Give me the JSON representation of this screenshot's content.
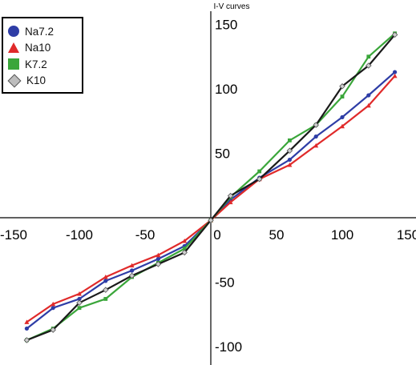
{
  "chart_data": {
    "type": "line",
    "title": "I-V curves",
    "xlabel": "",
    "ylabel": "",
    "xlim": [
      -155,
      155
    ],
    "ylim": [
      -105,
      155
    ],
    "x_ticks": [
      -150,
      -100,
      -50,
      0,
      50,
      100,
      150
    ],
    "y_ticks": [
      -100,
      -50,
      50,
      100,
      150
    ],
    "x_tick_labels": [
      "-150",
      "-100",
      "-50",
      "0",
      "50",
      "100",
      "150"
    ],
    "y_tick_labels": [
      "-100",
      "-50",
      "50",
      "100",
      "150"
    ],
    "grid": false,
    "legend_position": "top-left",
    "series": [
      {
        "name": "Na7.2",
        "color": "#2e3da6",
        "marker": "circle",
        "x": [
          -140,
          -120,
          -100,
          -80,
          -60,
          -40,
          -20,
          0,
          15,
          37,
          60,
          80,
          100,
          120,
          140
        ],
        "y": [
          -86,
          -70,
          -63,
          -49,
          -41,
          -32,
          -22,
          -2,
          14,
          31,
          45,
          63,
          78,
          95,
          113
        ]
      },
      {
        "name": "Na10",
        "color": "#e02a2a",
        "marker": "triangle",
        "x": [
          -140,
          -120,
          -100,
          -80,
          -60,
          -40,
          -20,
          0,
          15,
          37,
          60,
          80,
          100,
          120,
          140
        ],
        "y": [
          -81,
          -67,
          -59,
          -46,
          -37,
          -29,
          -18,
          -2,
          12,
          30,
          41,
          56,
          71,
          87,
          110
        ]
      },
      {
        "name": "K7.2",
        "color": "#3aa63a",
        "marker": "square",
        "x": [
          -140,
          -120,
          -100,
          -80,
          -60,
          -40,
          -20,
          0,
          15,
          37,
          60,
          80,
          100,
          120,
          140
        ],
        "y": [
          -95,
          -86,
          -70,
          -63,
          -46,
          -35,
          -24,
          -2,
          16,
          36,
          60,
          72,
          94,
          125,
          143
        ]
      },
      {
        "name": "K10",
        "color": "#1a1a1a",
        "marker": "diamond",
        "x": [
          -140,
          -120,
          -100,
          -80,
          -60,
          -40,
          -20,
          0,
          15,
          37,
          60,
          80,
          100,
          120,
          140
        ],
        "y": [
          -95,
          -87,
          -66,
          -56,
          -45,
          -36,
          -27,
          -2,
          17,
          30,
          52,
          72,
          102,
          118,
          142
        ]
      }
    ]
  }
}
